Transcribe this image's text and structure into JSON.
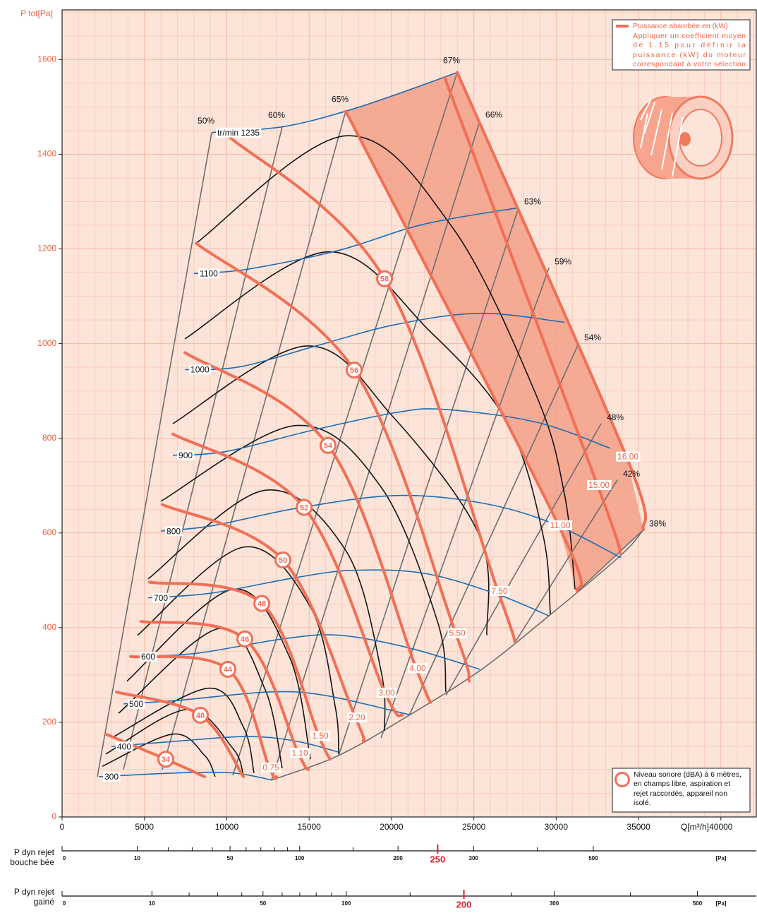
{
  "chart_data": {
    "type": "fan-curves",
    "ylabel": "P tot[Pa]",
    "xlabel": "Q[m³/h]",
    "xlim": [
      0,
      42150
    ],
    "ylim": [
      0,
      1705
    ],
    "xticks": [
      0,
      5000,
      10000,
      15000,
      20000,
      25000,
      30000,
      35000,
      40000
    ],
    "yticks": [
      0,
      200,
      400,
      600,
      800,
      1000,
      1200,
      1400,
      1600
    ],
    "grid": true,
    "speed_curves": {
      "color": "#1b6db5",
      "lines": [
        {
          "label": "300",
          "points": [
            [
              2228,
              85
            ],
            [
              6941,
              93
            ],
            [
              10368,
              93
            ],
            [
              12725,
              78
            ]
          ]
        },
        {
          "label": "400",
          "points": [
            [
              2999,
              149
            ],
            [
              6941,
              160
            ],
            [
              11225,
              170
            ],
            [
              14224,
              160
            ],
            [
              16795,
              137
            ]
          ]
        },
        {
          "label": "500",
          "points": [
            [
              3728,
              239
            ],
            [
              6941,
              246
            ],
            [
              12511,
              264
            ],
            [
              15938,
              257
            ],
            [
              21080,
              216
            ]
          ]
        },
        {
          "label": "600",
          "points": [
            [
              4456,
              339
            ],
            [
              8226,
              346
            ],
            [
              13368,
              376
            ],
            [
              16795,
              384
            ],
            [
              21080,
              357
            ],
            [
              25364,
              312
            ]
          ]
        },
        {
          "label": "700",
          "points": [
            [
              5227,
              463
            ],
            [
              9083,
              473
            ],
            [
              14224,
              506
            ],
            [
              17652,
              521
            ],
            [
              21937,
              515
            ],
            [
              26221,
              473
            ],
            [
              29563,
              425
            ]
          ]
        },
        {
          "label": "800",
          "points": [
            [
              5998,
              604
            ],
            [
              9083,
              615
            ],
            [
              14224,
              652
            ],
            [
              20223,
              679
            ],
            [
              25364,
              664
            ],
            [
              29648,
              622
            ],
            [
              33933,
              548
            ]
          ]
        },
        {
          "label": "900",
          "points": [
            [
              6727,
              764
            ],
            [
              9940,
              772
            ],
            [
              15081,
              816
            ],
            [
              20223,
              854
            ],
            [
              23222,
              861
            ],
            [
              28792,
              834
            ],
            [
              33290,
              779
            ]
          ]
        },
        {
          "label": "1000",
          "points": [
            [
              7455,
              945
            ],
            [
              10797,
              951
            ],
            [
              15510,
              996
            ],
            [
              20223,
              1040
            ],
            [
              25364,
              1064
            ],
            [
              30505,
              1045
            ]
          ]
        },
        {
          "label": "1100",
          "points": [
            [
              8012,
              1148
            ],
            [
              11225,
              1157
            ],
            [
              16795,
              1197
            ],
            [
              21937,
              1252
            ],
            [
              27721,
              1287
            ]
          ]
        },
        {
          "label": "tr/min 1235",
          "points": [
            [
              9083,
              1446
            ],
            [
              13368,
              1458
            ],
            [
              17224,
              1491
            ],
            [
              21000,
              1535
            ],
            [
              23993,
              1573
            ]
          ]
        }
      ]
    },
    "efficiency_lines": {
      "color": "#6e6e6e",
      "lines": [
        {
          "label": "50%",
          "points": [
            [
              9083,
              1446
            ],
            [
              2142,
              85
            ]
          ]
        },
        {
          "label": "60%",
          "points": [
            [
              13367,
              1458
            ],
            [
              3727,
              100
            ]
          ]
        },
        {
          "label": "65%",
          "points": [
            [
              17222,
              1491
            ],
            [
              6083,
              100
            ]
          ]
        },
        {
          "label": "67%",
          "points": [
            [
              23990,
              1573
            ],
            [
              10367,
              88
            ]
          ]
        },
        {
          "label": "66%",
          "points": [
            [
              25361,
              1470
            ],
            [
              12723,
              78
            ]
          ]
        },
        {
          "label": "63%",
          "points": [
            [
              27717,
              1287
            ],
            [
              16793,
              130
            ]
          ]
        },
        {
          "label": "59%",
          "points": [
            [
              29560,
              1160
            ],
            [
              19364,
              167
            ]
          ]
        },
        {
          "label": "54%",
          "points": [
            [
              31359,
              1000
            ],
            [
              21077,
              215
            ]
          ]
        },
        {
          "label": "48%",
          "points": [
            [
              32730,
              831
            ],
            [
              23305,
              257
            ]
          ]
        },
        {
          "label": "42%",
          "points": [
            [
              33715,
              712
            ],
            [
              27503,
              369
            ]
          ]
        },
        {
          "label": "38%",
          "points": [
            [
              35300,
              607
            ],
            [
              31273,
              476
            ]
          ]
        }
      ]
    },
    "limit": {
      "points": [
        [
          12723,
          78
        ],
        [
          16793,
          130
        ],
        [
          21077,
          215
        ],
        [
          25400,
          310
        ],
        [
          29560,
          425
        ],
        [
          33930,
          553
        ],
        [
          35300,
          607
        ]
      ]
    },
    "duct_curves": {
      "color": "#151515",
      "lines": [
        {
          "points": [
            [
              2442,
              107
            ],
            [
              6726,
              175
            ],
            [
              8654,
              130
            ],
            [
              9296,
              85
            ]
          ]
        },
        {
          "points": [
            [
              2656,
              133
            ],
            [
              7583,
              227
            ],
            [
              10367,
              145
            ],
            [
              11010,
              88
            ]
          ]
        },
        {
          "points": [
            [
              2999,
              167
            ],
            [
              8868,
              272
            ],
            [
              11010,
              190
            ],
            [
              11652,
              93
            ]
          ]
        },
        {
          "points": [
            [
              3427,
              219
            ],
            [
              9510,
              398
            ],
            [
              12295,
              272
            ],
            [
              13366,
              103
            ]
          ]
        },
        {
          "points": [
            [
              3941,
              287
            ],
            [
              10367,
              481
            ],
            [
              13795,
              339
            ],
            [
              15080,
              122
            ]
          ]
        },
        {
          "points": [
            [
              4584,
              384
            ],
            [
              11010,
              570
            ],
            [
              15080,
              443
            ],
            [
              16579,
              234
            ],
            [
              16793,
              133
            ]
          ]
        },
        {
          "points": [
            [
              5227,
              503
            ],
            [
              12295,
              690
            ],
            [
              17222,
              563
            ],
            [
              19364,
              309
            ],
            [
              19578,
              182
            ]
          ]
        },
        {
          "points": [
            [
              5998,
              667
            ],
            [
              14223,
              827
            ],
            [
              19364,
              697
            ],
            [
              22791,
              413
            ],
            [
              23305,
              264
            ]
          ]
        },
        {
          "points": [
            [
              6726,
              831
            ],
            [
              14866,
              995
            ],
            [
              20077,
              846
            ],
            [
              25361,
              593
            ],
            [
              25790,
              384
            ]
          ]
        },
        {
          "points": [
            [
              7454,
              1010
            ],
            [
              16151,
              1194
            ],
            [
              22362,
              1025
            ],
            [
              27075,
              831
            ],
            [
              29217,
              593
            ],
            [
              29645,
              428
            ]
          ]
        },
        {
          "points": [
            [
              8140,
              1212
            ],
            [
              17222,
              1439
            ],
            [
              23648,
              1248
            ],
            [
              28789,
              891
            ],
            [
              30502,
              682
            ],
            [
              31145,
              481
            ]
          ]
        }
      ]
    },
    "power_lines": {
      "color": "#f26f55",
      "lines": [
        {
          "label": "7.50",
          "points": [
            [
              9939,
              1443
            ],
            [
              19578,
              1137
            ],
            [
              26475,
              476
            ],
            [
              27503,
              369
            ]
          ]
        },
        {
          "label": "5.50",
          "points": [
            [
              8140,
              1212
            ],
            [
              17736,
              944
            ],
            [
              23905,
              387
            ],
            [
              24719,
              287
            ]
          ]
        },
        {
          "label": "4.00",
          "points": [
            [
              7454,
              981
            ],
            [
              16151,
              785
            ],
            [
              21506,
              313
            ],
            [
              22363,
              242
            ]
          ]
        },
        {
          "label": "3.00",
          "points": [
            [
              6726,
              809
            ],
            [
              14694,
              654
            ],
            [
              19621,
              261
            ],
            [
              20649,
              215
            ]
          ]
        },
        {
          "label": "2.20",
          "points": [
            [
              6083,
              660
            ],
            [
              13409,
              543
            ],
            [
              17822,
              209
            ],
            [
              18293,
              160
            ]
          ]
        },
        {
          "label": "1.50",
          "points": [
            [
              5312,
              496
            ],
            [
              12124,
              451
            ],
            [
              15594,
              170
            ],
            [
              16279,
              122
            ]
          ]
        },
        {
          "label": "1.10",
          "points": [
            [
              4798,
              413
            ],
            [
              11096,
              376
            ],
            [
              14351,
              134
            ],
            [
              14951,
              100
            ]
          ]
        },
        {
          "label": "0.75",
          "points": [
            [
              4155,
              339
            ],
            [
              10067,
              312
            ],
            [
              12595,
              103
            ],
            [
              13023,
              85
            ]
          ]
        },
        {
          "points": [
            [
              3299,
              264
            ],
            [
              8397,
              215
            ],
            [
              11010,
              85
            ]
          ]
        },
        {
          "points": [
            [
              2656,
              175
            ],
            [
              6298,
              122
            ],
            [
              8654,
              85
            ]
          ]
        },
        {
          "label": "11.00",
          "points": [
            [
              17222,
              1491
            ],
            [
              30159,
              615
            ],
            [
              31273,
              476
            ]
          ]
        },
        {
          "label": "15.00",
          "points": [
            [
              23219,
              1563
            ],
            [
              32516,
              700
            ],
            [
              33929,
              555
            ]
          ]
        },
        {
          "label": "16.00",
          "points": [
            [
              23990,
              1573
            ],
            [
              34272,
              760
            ],
            [
              35300,
              607
            ]
          ]
        }
      ]
    },
    "band_color": "#f4a38c",
    "noise_levels": {
      "color": "#f26f55",
      "points": [
        {
          "value": 58,
          "x": 19578,
          "y": 1137
        },
        {
          "value": 56,
          "x": 17736,
          "y": 944
        },
        {
          "value": 54,
          "x": 16151,
          "y": 785
        },
        {
          "value": 52,
          "x": 14694,
          "y": 654
        },
        {
          "value": 50,
          "x": 13409,
          "y": 543
        },
        {
          "value": 48,
          "x": 12124,
          "y": 451
        },
        {
          "value": 46,
          "x": 11096,
          "y": 376
        },
        {
          "value": 44,
          "x": 10067,
          "y": 312
        },
        {
          "value": 40,
          "x": 8397,
          "y": 215
        },
        {
          "value": 34,
          "x": 6298,
          "y": 122
        }
      ]
    },
    "legend_power": [
      "Puissance absorbée en (kW)",
      "Appliquer un coefficient moyen",
      "de 1.15 pour définir la",
      "puissance (kW) du moteur",
      "correspondant à votre sélection"
    ],
    "legend_noise": [
      "Niveau sonore (dBA) à 6 mètres,",
      "en champs libre, aspiration et",
      "rejet raccordés, appareil non",
      "isolé."
    ],
    "dynamic_scales": [
      {
        "title": [
          "P dyn rejet",
          "bouche bée"
        ],
        "scale": "sqrt",
        "lim": [
          0,
          854
        ],
        "unit": "[Pa]",
        "ticks": [
          0,
          10,
          50,
          100,
          200,
          250,
          300,
          500
        ],
        "minor_ticks": [
          20,
          30,
          40,
          60,
          70,
          80,
          90,
          150,
          400
        ],
        "highlight": 250,
        "highlight_color": "#e0202a"
      },
      {
        "title": [
          "P dyn rejet",
          "gainé"
        ],
        "scale": "sqrt",
        "lim": [
          0,
          597
        ],
        "unit": "[Pa]",
        "ticks": [
          0,
          10,
          50,
          100,
          200,
          300,
          500
        ],
        "minor_ticks": [
          20,
          30,
          40,
          60,
          70,
          80,
          90,
          150,
          250,
          400
        ],
        "highlight": 200,
        "highlight_color": "#e0202a"
      }
    ]
  }
}
